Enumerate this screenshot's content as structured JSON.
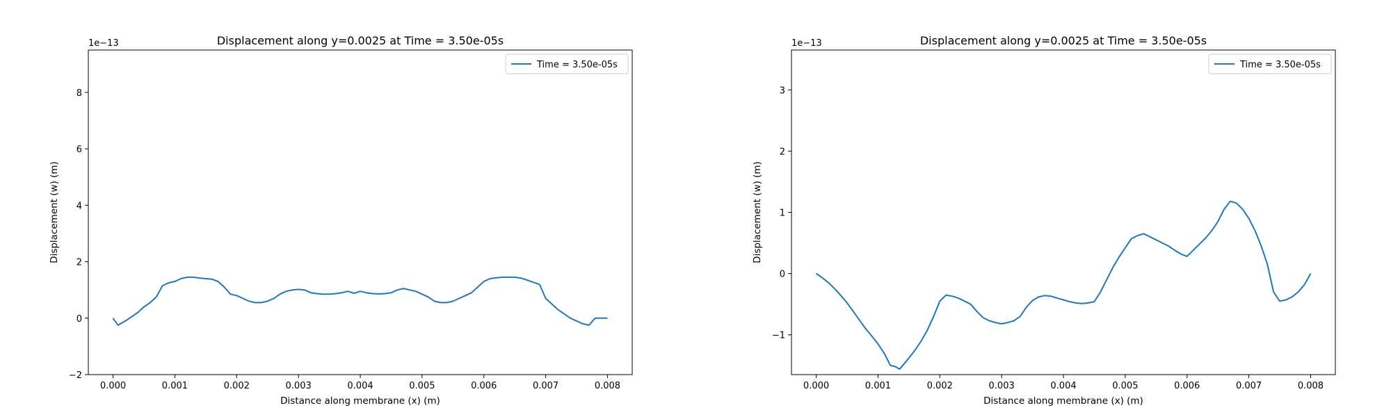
{
  "colors": {
    "line": "#1f77b4",
    "axis": "#000000",
    "legend_border": "#cccccc"
  },
  "chart_data": [
    {
      "type": "line",
      "title": "Displacement along y=0.0025 at Time = 3.50e-05s",
      "xlabel": "Distance along membrane (x) (m)",
      "ylabel": "Displacement (w) (m)",
      "offset_text": "1e−13",
      "xlim": [
        -0.0004,
        0.0084
      ],
      "ylim": [
        -2,
        9.5
      ],
      "xticks": [
        0.0,
        0.001,
        0.002,
        0.003,
        0.004,
        0.005,
        0.006,
        0.007,
        0.008
      ],
      "xtick_labels": [
        "0.000",
        "0.001",
        "0.002",
        "0.003",
        "0.004",
        "0.005",
        "0.006",
        "0.007",
        "0.008"
      ],
      "yticks": [
        -2,
        0,
        2,
        4,
        6,
        8
      ],
      "ytick_labels": [
        "−2",
        "0",
        "2",
        "4",
        "6",
        "8"
      ],
      "grid": false,
      "legend_position": "top-right",
      "series": [
        {
          "name": "Time = 3.50e-05s",
          "x": [
            0.0,
            8e-05,
            0.0002,
            0.0003,
            0.0004,
            0.0005,
            0.0006,
            0.0007,
            0.0008,
            0.0009,
            0.001,
            0.0011,
            0.0012,
            0.0013,
            0.0014,
            0.0015,
            0.0016,
            0.0017,
            0.0018,
            0.0019,
            0.002,
            0.0021,
            0.0022,
            0.0023,
            0.0024,
            0.0025,
            0.0026,
            0.0027,
            0.0028,
            0.0029,
            0.003,
            0.0031,
            0.0032,
            0.0033,
            0.0034,
            0.0035,
            0.0036,
            0.0037,
            0.0038,
            0.0039,
            0.004,
            0.0041,
            0.0042,
            0.0043,
            0.0044,
            0.0045,
            0.0046,
            0.0047,
            0.0048,
            0.0049,
            0.005,
            0.0051,
            0.0052,
            0.0053,
            0.0054,
            0.0055,
            0.0056,
            0.0057,
            0.0058,
            0.0059,
            0.006,
            0.0061,
            0.0062,
            0.0063,
            0.0064,
            0.0065,
            0.0066,
            0.0067,
            0.0068,
            0.0069,
            0.007,
            0.0071,
            0.0072,
            0.0073,
            0.0074,
            0.0075,
            0.0076,
            0.0077,
            0.0078,
            0.0079,
            0.008
          ],
          "y": [
            0.0,
            -0.25,
            -0.1,
            0.05,
            0.2,
            0.4,
            0.55,
            0.75,
            1.15,
            1.25,
            1.3,
            1.4,
            1.45,
            1.45,
            1.42,
            1.4,
            1.38,
            1.3,
            1.1,
            0.85,
            0.8,
            0.7,
            0.6,
            0.55,
            0.55,
            0.6,
            0.7,
            0.85,
            0.95,
            1.0,
            1.02,
            1.0,
            0.9,
            0.87,
            0.85,
            0.85,
            0.87,
            0.9,
            0.95,
            0.88,
            0.95,
            0.9,
            0.87,
            0.86,
            0.87,
            0.9,
            1.0,
            1.05,
            1.0,
            0.95,
            0.85,
            0.75,
            0.6,
            0.55,
            0.55,
            0.6,
            0.7,
            0.8,
            0.9,
            1.1,
            1.3,
            1.4,
            1.43,
            1.45,
            1.45,
            1.45,
            1.42,
            1.35,
            1.27,
            1.2,
            0.7,
            0.5,
            0.3,
            0.15,
            0.0,
            -0.1,
            -0.2,
            -0.25,
            0.0,
            0.0,
            0.0
          ]
        }
      ]
    },
    {
      "type": "line",
      "title": "Displacement along y=0.0025 at Time = 3.50e-05s",
      "xlabel": "Distance along membrane (x) (m)",
      "ylabel": "Displacement (w) (m)",
      "offset_text": "1e−13",
      "xlim": [
        -0.0004,
        0.0084
      ],
      "ylim": [
        -1.65,
        3.65
      ],
      "xticks": [
        0.0,
        0.001,
        0.002,
        0.003,
        0.004,
        0.005,
        0.006,
        0.007,
        0.008
      ],
      "xtick_labels": [
        "0.000",
        "0.001",
        "0.002",
        "0.003",
        "0.004",
        "0.005",
        "0.006",
        "0.007",
        "0.008"
      ],
      "yticks": [
        -1,
        0,
        1,
        2,
        3
      ],
      "ytick_labels": [
        "−1",
        "0",
        "1",
        "2",
        "3"
      ],
      "grid": false,
      "legend_position": "top-right",
      "series": [
        {
          "name": "Time = 3.50e-05s",
          "x": [
            0.0,
            0.0001,
            0.0002,
            0.0003,
            0.0004,
            0.0005,
            0.0006,
            0.0007,
            0.0008,
            0.0009,
            0.001,
            0.0011,
            0.0012,
            0.00128,
            0.00135,
            0.0014,
            0.0015,
            0.0016,
            0.0017,
            0.0018,
            0.0019,
            0.002,
            0.0021,
            0.0022,
            0.0023,
            0.0024,
            0.0025,
            0.0026,
            0.0027,
            0.0028,
            0.0029,
            0.003,
            0.0031,
            0.0032,
            0.0033,
            0.0034,
            0.0035,
            0.0036,
            0.0037,
            0.0038,
            0.0039,
            0.004,
            0.0041,
            0.0042,
            0.0043,
            0.0044,
            0.0045,
            0.0046,
            0.0047,
            0.0048,
            0.0049,
            0.005,
            0.0051,
            0.0052,
            0.0053,
            0.0054,
            0.0055,
            0.0056,
            0.0057,
            0.0058,
            0.0059,
            0.006,
            0.0061,
            0.0062,
            0.0063,
            0.0064,
            0.0065,
            0.0066,
            0.0067,
            0.0068,
            0.0069,
            0.007,
            0.0071,
            0.0072,
            0.0073,
            0.0074,
            0.0075,
            0.0076,
            0.0077,
            0.0078,
            0.0079,
            0.008
          ],
          "y": [
            0.0,
            -0.07,
            -0.15,
            -0.25,
            -0.36,
            -0.48,
            -0.62,
            -0.76,
            -0.9,
            -1.02,
            -1.15,
            -1.3,
            -1.5,
            -1.52,
            -1.56,
            -1.5,
            -1.38,
            -1.25,
            -1.1,
            -0.92,
            -0.7,
            -0.45,
            -0.35,
            -0.37,
            -0.4,
            -0.45,
            -0.5,
            -0.62,
            -0.72,
            -0.77,
            -0.8,
            -0.82,
            -0.8,
            -0.77,
            -0.7,
            -0.55,
            -0.44,
            -0.38,
            -0.36,
            -0.37,
            -0.4,
            -0.43,
            -0.46,
            -0.48,
            -0.49,
            -0.48,
            -0.46,
            -0.3,
            -0.1,
            0.1,
            0.27,
            0.42,
            0.57,
            0.62,
            0.65,
            0.6,
            0.55,
            0.5,
            0.45,
            0.38,
            0.32,
            0.28,
            0.38,
            0.48,
            0.58,
            0.7,
            0.85,
            1.05,
            1.18,
            1.15,
            1.05,
            0.9,
            0.7,
            0.45,
            0.15,
            -0.3,
            -0.45,
            -0.43,
            -0.38,
            -0.3,
            -0.18,
            0.0
          ]
        }
      ]
    }
  ]
}
